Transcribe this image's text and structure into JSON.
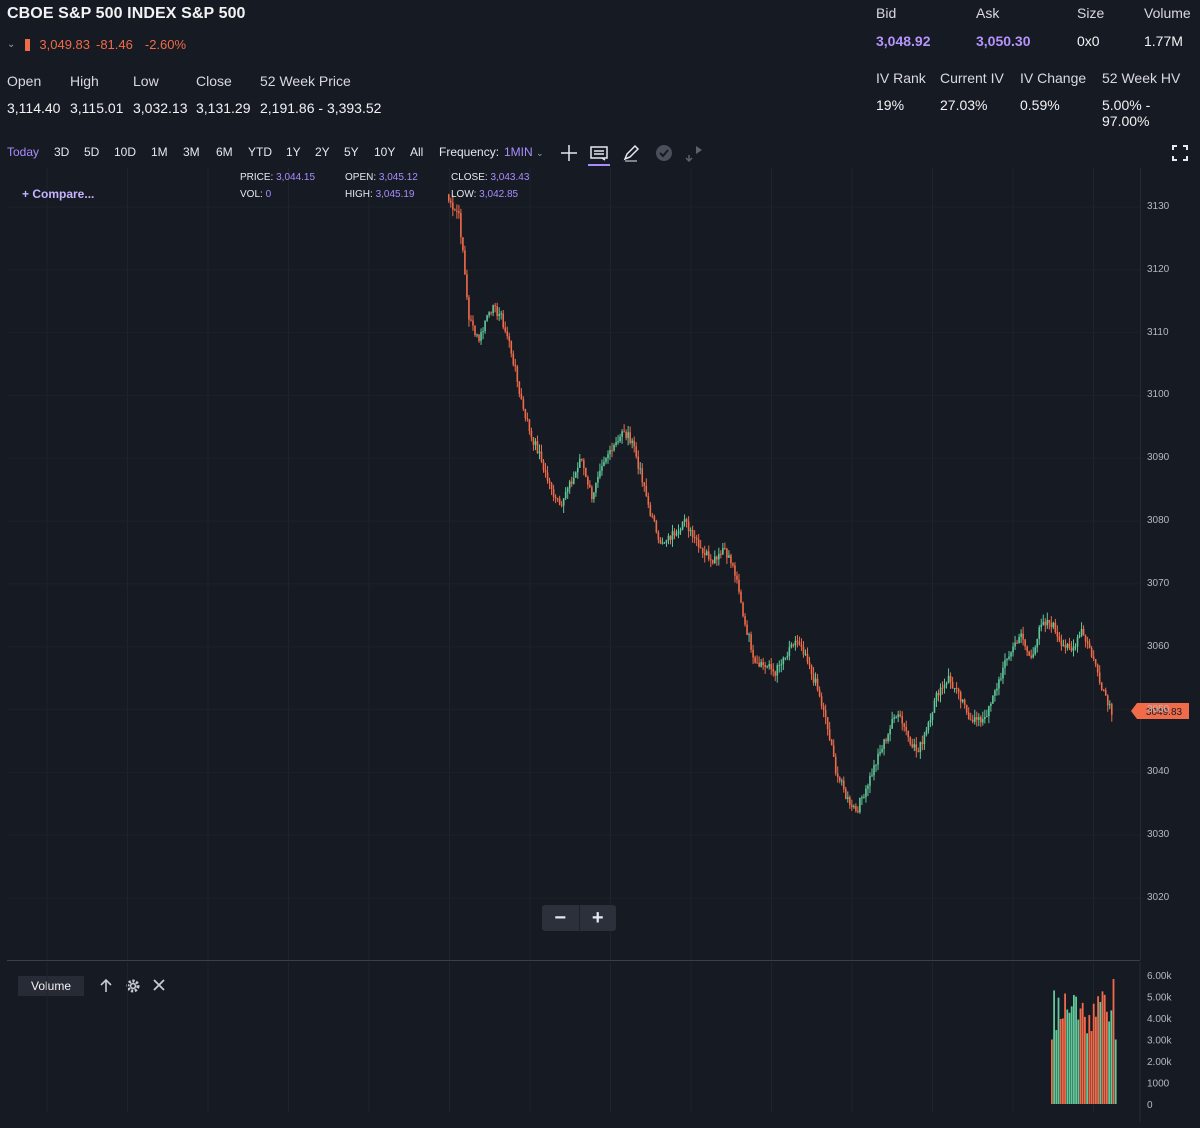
{
  "header": {
    "title": "CBOE S&P 500 INDEX S&P 500",
    "last_price": "3,049.83",
    "change": "-81.46",
    "change_pct": "-2.60%",
    "stats": [
      {
        "label": "Open",
        "value": "3,114.40"
      },
      {
        "label": "High",
        "value": "3,115.01"
      },
      {
        "label": "Low",
        "value": "3,032.13"
      },
      {
        "label": "Close",
        "value": "3,131.29"
      },
      {
        "label": "52 Week Price",
        "value": "2,191.86 - 3,393.52"
      }
    ],
    "quote": [
      {
        "label": "Bid",
        "value": "3,048.92"
      },
      {
        "label": "Ask",
        "value": "3,050.30"
      },
      {
        "label": "Size",
        "value": "0x0"
      },
      {
        "label": "Volume",
        "value": "1.77M"
      }
    ],
    "iv": [
      {
        "label": "IV Rank",
        "value": "19%"
      },
      {
        "label": "Current IV",
        "value": "27.03%"
      },
      {
        "label": "IV Change",
        "value": "0.59%"
      },
      {
        "label": "52 Week HV",
        "value": "5.00% - 97.00%"
      }
    ]
  },
  "toolbar": {
    "timeframes": [
      "Today",
      "3D",
      "5D",
      "10D",
      "1M",
      "3M",
      "6M",
      "YTD",
      "1Y",
      "2Y",
      "5Y",
      "10Y",
      "All"
    ],
    "active_timeframe": "Today",
    "frequency_label": "Frequency:",
    "frequency_value": "1MIN",
    "tools": [
      "crosshair-icon",
      "news-icon",
      "draw-icon",
      "check-icon",
      "share-icon"
    ],
    "fullscreen_icon": "fullscreen-icon"
  },
  "chart": {
    "compare_label": "+ Compare...",
    "readout": {
      "price_label": "PRICE:",
      "price": "3,044.15",
      "vol_label": "VOL:",
      "vol": "0",
      "open_label": "OPEN:",
      "open": "3,045.12",
      "high_label": "HIGH:",
      "high": "3,045.19",
      "close_label": "CLOSE:",
      "close": "3,043.43",
      "low_label": "LOW:",
      "low": "3,042.85"
    },
    "price_tag": "3049.83",
    "zoom_out": "−",
    "zoom_in": "+",
    "colors": {
      "up": "#5fc99a",
      "down": "#f06b4a",
      "accent": "#a98cff"
    }
  },
  "chart_data": {
    "type": "candlestick",
    "y_ticks": [
      "3130",
      "3120",
      "3110",
      "3100",
      "3090",
      "3080",
      "3070",
      "3060",
      "3050",
      "3040",
      "3030",
      "3020"
    ],
    "ylim": [
      3013,
      3139
    ],
    "close_path": [
      3131,
      3129,
      3112,
      3109,
      3114,
      3113,
      3108,
      3100,
      3094,
      3090,
      3085,
      3083,
      3086,
      3090,
      3084,
      3088,
      3092,
      3094,
      3093,
      3086,
      3080,
      3076,
      3078,
      3080,
      3078,
      3075,
      3074,
      3076,
      3072,
      3064,
      3058,
      3057,
      3056,
      3058,
      3061,
      3058,
      3054,
      3048,
      3040,
      3036,
      3034,
      3038,
      3042,
      3046,
      3050,
      3046,
      3043,
      3048,
      3053,
      3055,
      3052,
      3049,
      3048,
      3050,
      3055,
      3059,
      3062,
      3058,
      3063,
      3064,
      3061,
      3059,
      3063,
      3059,
      3054,
      3049.83
    ],
    "volume": {
      "label": "Volume",
      "y_ticks": [
        "6.00k",
        "5.00k",
        "4.00k",
        "3.00k",
        "2.00k",
        "1000",
        "0"
      ],
      "ylim": [
        0,
        6000
      ]
    }
  }
}
